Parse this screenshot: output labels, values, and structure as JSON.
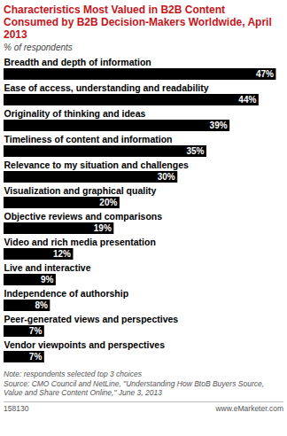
{
  "chart_data": {
    "type": "bar",
    "orientation": "horizontal",
    "title": "Characteristics Most Valued in B2B Content Consumed by B2B Decision-Makers Worldwide, April 2013",
    "subtitle": "% of respondents",
    "categories": [
      "Breadth and depth of information",
      "Ease of access, understanding and readability",
      "Originality of thinking and ideas",
      "Timeliness of content and information",
      "Relevance to my situation and challenges",
      "Visualization and graphical quality",
      "Objective reviews and comparisons",
      "Video and rich media presentation",
      "Live and interactive",
      "Independence of authorship",
      "Peer-generated views and perspectives",
      "Vendor viewpoints and perspectives"
    ],
    "values": [
      47,
      44,
      39,
      35,
      30,
      20,
      19,
      12,
      9,
      8,
      7,
      7
    ],
    "value_labels": [
      "47%",
      "44%",
      "39%",
      "35%",
      "30%",
      "20%",
      "19%",
      "12%",
      "9%",
      "8%",
      "7%",
      "7%"
    ],
    "data_labels": true,
    "color": "#000000",
    "xlim": [
      0,
      48
    ],
    "tick_labels": false,
    "grid": false,
    "note": "Note: respondents selected top 3 choices",
    "source": "Source: CMO Council and NetLine, \"Understanding How BtoB Buyers Source, Value and Share Content Online,\" June 3, 2013",
    "chart_id": "158130",
    "credit": "www.eMarketer.com"
  }
}
